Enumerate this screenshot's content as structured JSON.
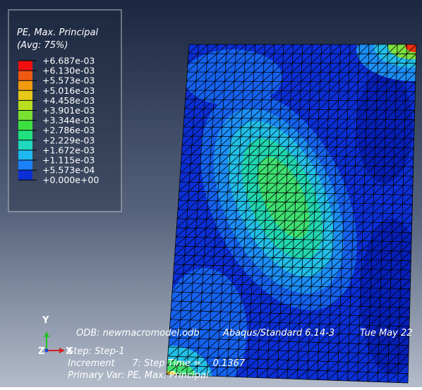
{
  "legend": {
    "title": "PE, Max. Principal",
    "avg": "(Avg: 75%)",
    "levels": [
      "+6.687e-03",
      "+6.130e-03",
      "+5.573e-03",
      "+5.016e-03",
      "+4.458e-03",
      "+3.901e-03",
      "+3.344e-03",
      "+2.786e-03",
      "+2.229e-03",
      "+1.672e-03",
      "+1.115e-03",
      "+5.573e-04",
      "+0.000e+00"
    ]
  },
  "info": {
    "odb": "ODB: newmacromodel.odb",
    "solver": "Abaqus/Standard 6.14-3",
    "date": "Tue May 22",
    "step": "Step: Step-1",
    "increment": "Increment      7: Step Time =    0.1367",
    "primary_var": "Primary Var: PE, Max. Principal"
  },
  "triad": {
    "y": "Y",
    "x": "X",
    "z": "Z"
  }
}
